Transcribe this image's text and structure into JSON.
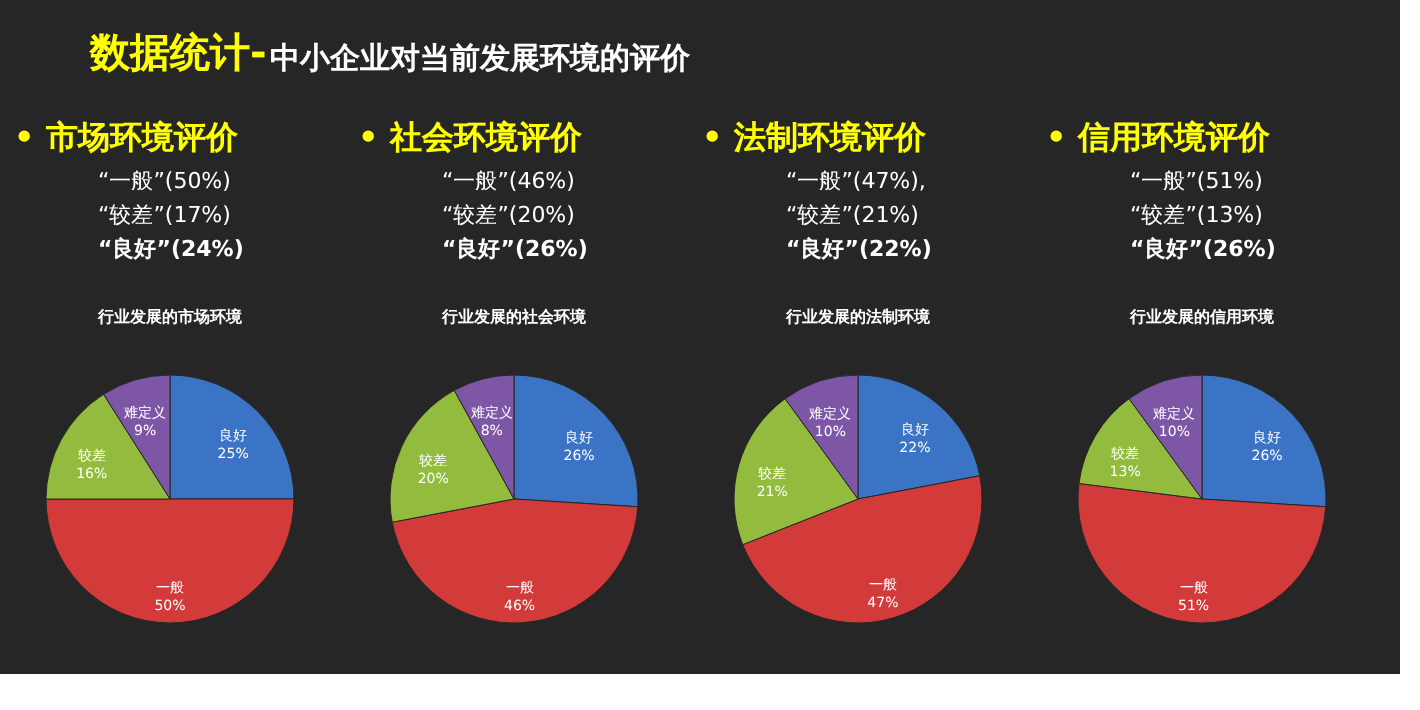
{
  "chart_data": [
    {
      "type": "other",
      "title": "数据统计-",
      "subtitle": "中小企业对当前发展环境的评价"
    },
    {
      "type": "pie",
      "title": "•  市场环境评价",
      "annotations": [
        "“一般”(50%)",
        "“较差”(17%)",
        "“良好”(24%)"
      ],
      "subtitle": "行业发展的市场环境",
      "categories": [
        "良好",
        "一般",
        "较差",
        "难定义"
      ],
      "values": [
        25,
        50,
        16,
        9
      ],
      "value_labels": [
        "25%",
        "50%",
        "16%",
        "9%"
      ],
      "colors": [
        "#3b74c4",
        "#d23b3a",
        "#93bb3d",
        "#7d57a6"
      ],
      "legend": false
    },
    {
      "type": "pie",
      "title": "•  社会环境评价",
      "annotations": [
        "“一般”(46%)",
        "“较差”(20%)",
        "“良好”(26%)"
      ],
      "subtitle": "行业发展的社会环境",
      "categories": [
        "良好",
        "一般",
        "较差",
        "难定义"
      ],
      "values": [
        26,
        46,
        20,
        8
      ],
      "value_labels": [
        "26%",
        "46%",
        "20%",
        "8%"
      ],
      "colors": [
        "#3b74c4",
        "#d23b3a",
        "#93bb3d",
        "#7d57a6"
      ],
      "legend": false
    },
    {
      "type": "pie",
      "title": "•  法制环境评价",
      "annotations": [
        "“一般”(47%),",
        "“较差”(21%)",
        "“良好”(22%)"
      ],
      "subtitle": "行业发展的法制环境",
      "categories": [
        "良好",
        "一般",
        "较差",
        "难定义"
      ],
      "values": [
        22,
        47,
        21,
        10
      ],
      "value_labels": [
        "22%",
        "47%",
        "21%",
        "10%"
      ],
      "colors": [
        "#3b74c4",
        "#d23b3a",
        "#93bb3d",
        "#7d57a6"
      ],
      "legend": false
    },
    {
      "type": "pie",
      "title": "•  信用环境评价",
      "annotations": [
        "“一般”(51%)",
        "“较差”(13%)",
        "“良好”(26%)"
      ],
      "subtitle": "行业发展的信用环境",
      "categories": [
        "良好",
        "一般",
        "较差",
        "难定义"
      ],
      "values": [
        26,
        51,
        13,
        10
      ],
      "value_labels": [
        "26%",
        "51%",
        "13%",
        "10%"
      ],
      "colors": [
        "#3b74c4",
        "#d23b3a",
        "#93bb3d",
        "#7d57a6"
      ],
      "legend": false
    }
  ]
}
